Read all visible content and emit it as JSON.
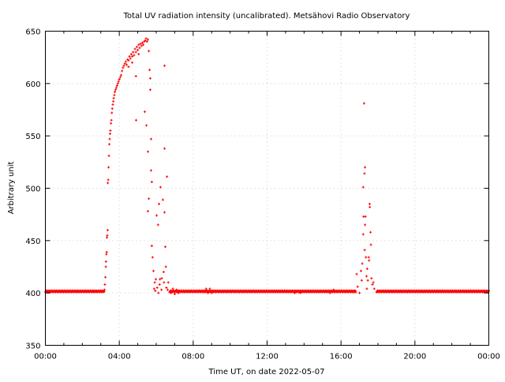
{
  "chart_data": {
    "type": "scatter",
    "title": "Total UV radiation intensity (uncalibrated). Metsähovi Radio Observatory",
    "xlabel": "Time UT, on date 2022-05-07",
    "ylabel": "Arbitrary unit",
    "xlim": [
      0,
      24
    ],
    "ylim": [
      350,
      650
    ],
    "x_unit": "hours",
    "x_ticks": [
      0,
      4,
      8,
      12,
      16,
      20,
      24
    ],
    "x_tick_labels": [
      "00:00",
      "04:00",
      "08:00",
      "12:00",
      "16:00",
      "20:00",
      "00:00"
    ],
    "y_ticks": [
      350,
      400,
      450,
      500,
      550,
      600,
      650
    ],
    "y_tick_labels": [
      "350",
      "400",
      "450",
      "500",
      "550",
      "600",
      "650"
    ],
    "grid": true,
    "color": "#ff0000",
    "baseline": {
      "value": 401.5,
      "x_start": 0,
      "x_end": 24,
      "step": 0.02
    },
    "points": [
      [
        3.2,
        403
      ],
      [
        3.22,
        408
      ],
      [
        3.25,
        415
      ],
      [
        3.27,
        425
      ],
      [
        3.28,
        430
      ],
      [
        3.3,
        437
      ],
      [
        3.32,
        439
      ],
      [
        3.33,
        453
      ],
      [
        3.35,
        455
      ],
      [
        3.37,
        460
      ],
      [
        3.38,
        505
      ],
      [
        3.4,
        508
      ],
      [
        3.42,
        520
      ],
      [
        3.44,
        531
      ],
      [
        3.46,
        542
      ],
      [
        3.48,
        547
      ],
      [
        3.5,
        552
      ],
      [
        3.52,
        555
      ],
      [
        3.55,
        562
      ],
      [
        3.57,
        565
      ],
      [
        3.6,
        572
      ],
      [
        3.62,
        576
      ],
      [
        3.65,
        580
      ],
      [
        3.68,
        583
      ],
      [
        3.7,
        586
      ],
      [
        3.73,
        589
      ],
      [
        3.76,
        592
      ],
      [
        3.8,
        594
      ],
      [
        3.84,
        596
      ],
      [
        3.88,
        598
      ],
      [
        3.92,
        600
      ],
      [
        3.96,
        602
      ],
      [
        4.0,
        604
      ],
      [
        4.05,
        606
      ],
      [
        4.1,
        608
      ],
      [
        4.15,
        612
      ],
      [
        4.2,
        615
      ],
      [
        4.25,
        617
      ],
      [
        4.3,
        619
      ],
      [
        4.35,
        621
      ],
      [
        4.4,
        618
      ],
      [
        4.45,
        623
      ],
      [
        4.5,
        622
      ],
      [
        4.55,
        626
      ],
      [
        4.6,
        624
      ],
      [
        4.65,
        628
      ],
      [
        4.7,
        626
      ],
      [
        4.75,
        630
      ],
      [
        4.8,
        627
      ],
      [
        4.85,
        633
      ],
      [
        4.9,
        630
      ],
      [
        4.95,
        635
      ],
      [
        5.0,
        632
      ],
      [
        5.05,
        637
      ],
      [
        5.1,
        634
      ],
      [
        5.15,
        638
      ],
      [
        5.2,
        636
      ],
      [
        5.25,
        639
      ],
      [
        5.3,
        637
      ],
      [
        5.35,
        640
      ],
      [
        5.4,
        641
      ],
      [
        5.45,
        643
      ],
      [
        5.5,
        640
      ],
      [
        5.55,
        642
      ],
      [
        4.5,
        616
      ],
      [
        4.7,
        620
      ],
      [
        4.9,
        607
      ],
      [
        5.05,
        628
      ],
      [
        5.6,
        631
      ],
      [
        4.91,
        565
      ],
      [
        5.38,
        573
      ],
      [
        5.47,
        560
      ],
      [
        5.55,
        535
      ],
      [
        5.55,
        478
      ],
      [
        5.6,
        490
      ],
      [
        5.64,
        613
      ],
      [
        5.68,
        605
      ],
      [
        5.68,
        594
      ],
      [
        5.72,
        547
      ],
      [
        5.72,
        517
      ],
      [
        5.76,
        506
      ],
      [
        5.76,
        445
      ],
      [
        5.8,
        434
      ],
      [
        5.85,
        421
      ],
      [
        5.89,
        404
      ],
      [
        5.92,
        410
      ],
      [
        5.95,
        402
      ],
      [
        5.98,
        413
      ],
      [
        6.02,
        474
      ],
      [
        6.05,
        405
      ],
      [
        6.1,
        465
      ],
      [
        6.12,
        400
      ],
      [
        6.15,
        485
      ],
      [
        6.18,
        408
      ],
      [
        6.2,
        413
      ],
      [
        6.23,
        501
      ],
      [
        6.28,
        403
      ],
      [
        6.3,
        414
      ],
      [
        6.36,
        489
      ],
      [
        6.4,
        420
      ],
      [
        6.42,
        410
      ],
      [
        6.45,
        617
      ],
      [
        6.45,
        538
      ],
      [
        6.45,
        477
      ],
      [
        6.49,
        444
      ],
      [
        6.52,
        425
      ],
      [
        6.55,
        405
      ],
      [
        6.58,
        511
      ],
      [
        6.62,
        403
      ],
      [
        6.65,
        410
      ],
      [
        6.8,
        400
      ],
      [
        6.9,
        404
      ],
      [
        7.0,
        399
      ],
      [
        7.1,
        403
      ],
      [
        7.2,
        400
      ],
      [
        8.7,
        404
      ],
      [
        8.8,
        400
      ],
      [
        8.9,
        404
      ],
      [
        9.0,
        400
      ],
      [
        13.5,
        400
      ],
      [
        13.8,
        400
      ],
      [
        15.4,
        400
      ],
      [
        15.6,
        403
      ],
      [
        16.85,
        418
      ],
      [
        16.9,
        406
      ],
      [
        17.0,
        400
      ],
      [
        17.08,
        421
      ],
      [
        17.12,
        412
      ],
      [
        17.15,
        428
      ],
      [
        17.2,
        501
      ],
      [
        17.2,
        456
      ],
      [
        17.22,
        473
      ],
      [
        17.25,
        581
      ],
      [
        17.27,
        514
      ],
      [
        17.3,
        520
      ],
      [
        17.3,
        465
      ],
      [
        17.32,
        473
      ],
      [
        17.28,
        441
      ],
      [
        17.35,
        434
      ],
      [
        17.38,
        416
      ],
      [
        17.4,
        404
      ],
      [
        17.42,
        423
      ],
      [
        17.45,
        412
      ],
      [
        17.5,
        434
      ],
      [
        17.52,
        431
      ],
      [
        17.55,
        485
      ],
      [
        17.56,
        482
      ],
      [
        17.6,
        458
      ],
      [
        17.62,
        446
      ],
      [
        17.65,
        414
      ],
      [
        17.7,
        408
      ],
      [
        17.75,
        410
      ],
      [
        17.8,
        404
      ]
    ]
  }
}
